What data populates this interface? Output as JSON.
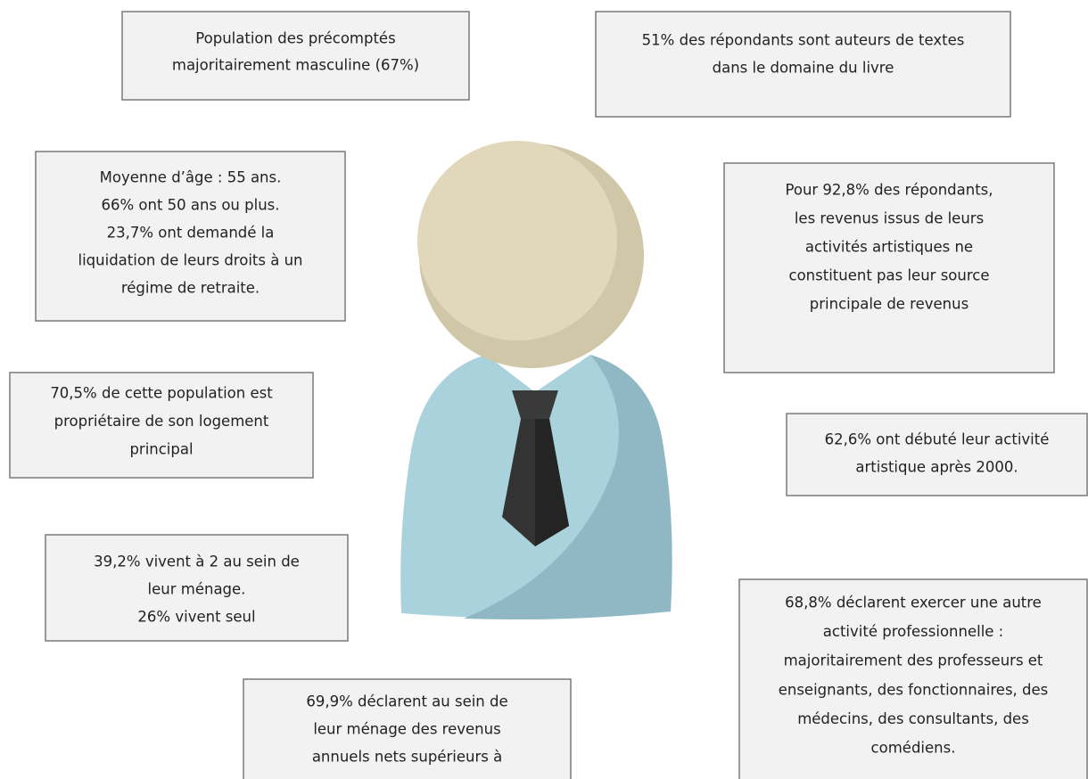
{
  "boxes": [
    {
      "lines": [
        "Population des précomptés",
        "majoritairement masculine (67%)"
      ]
    },
    {
      "lines": [
        "51% des répondants sont auteurs de textes",
        "dans le domaine du livre"
      ]
    },
    {
      "lines": [
        "Moyenne d’âge : 55 ans.",
        "66% ont 50 ans ou plus.",
        "23,7% ont demandé la",
        "liquidation de leurs droits à un",
        "régime de retraite."
      ]
    },
    {
      "lines": [
        "Pour 92,8% des répondants,",
        "les revenus issus de leurs",
        "activités artistiques ne",
        "constituent pas leur source",
        "principale de revenus"
      ]
    },
    {
      "lines": [
        "70,5% de cette population est",
        "propriétaire de son logement",
        "principal"
      ]
    },
    {
      "lines": [
        "62,6% ont débuté leur activité",
        "artistique après 2000."
      ]
    },
    {
      "lines": [
        "39,2% vivent à 2 au sein de",
        "leur ménage.",
        "26% vivent seul"
      ]
    },
    {
      "lines": [
        "68,8% déclarent exercer une autre",
        "activité professionnelle :",
        "majoritairement des professeurs et",
        "enseignants, des fonctionnaires, des",
        "médecins, des consultants, des",
        "comédiens."
      ]
    },
    {
      "lines": [
        "69,9% déclarent au sein de",
        "leur ménage des revenus",
        "annuels nets supérieurs à"
      ]
    }
  ]
}
